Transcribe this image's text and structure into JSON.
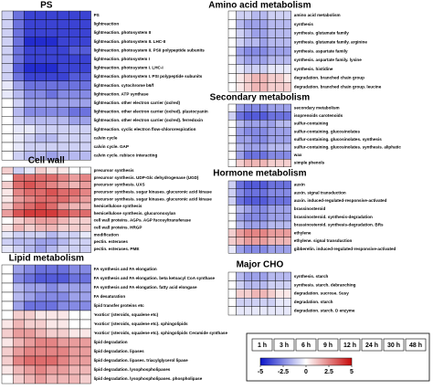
{
  "chart_data": [
    {
      "type": "heatmap",
      "title": "PS",
      "rows": [
        "PS",
        "lightreaction",
        "lightreaction. photosystem II",
        "lightreaction. photosystem II. LHC-II",
        "lightreaction. photosystem II. PSII polypeptide subunits",
        "lightreaction. photosystem I",
        "lightreaction. photosystem I. LHC-I",
        "lightreaction. photosystem I. PSI polypeptide subunits",
        "lightreaction. cytochrome b6/f",
        "lightreaction. ATP synthase",
        "lightreaction. other electron carrier (ox/red)",
        "lightreaction. other electron carrier (ox/red). plastocyanin",
        "lightreaction. other electron carrier (ox/red). ferredoxin",
        "lightreaction. cyclic electron flow-chlororespiration",
        "calvin cycle",
        "calvin cycle. GAP",
        "calvin cycle. rubisco interacting"
      ],
      "values": [
        [
          -1,
          -3,
          -4,
          -4,
          -4,
          -4,
          -4,
          -4
        ],
        [
          -1,
          -3,
          -4,
          -4,
          -4,
          -4,
          -4,
          -4
        ],
        [
          -1,
          -3,
          -4,
          -4,
          -4,
          -4,
          -4,
          -4
        ],
        [
          -1,
          -3,
          -4.5,
          -4.5,
          -4.5,
          -4,
          -4,
          -4
        ],
        [
          -1,
          -3,
          -4,
          -4,
          -4,
          -4,
          -3.5,
          -3.5
        ],
        [
          -1,
          -3,
          -4,
          -4,
          -4,
          -4,
          -4,
          -4
        ],
        [
          -1,
          -3.5,
          -4.5,
          -4.5,
          -4.5,
          -4,
          -4,
          -4
        ],
        [
          -1,
          -3,
          -4,
          -4,
          -4,
          -4,
          -3.5,
          -3.5
        ],
        [
          -0.5,
          -2,
          -3,
          -3,
          -3,
          -3,
          -3,
          -3
        ],
        [
          -0.5,
          -1.5,
          -2.5,
          -2.5,
          -3,
          -2.5,
          -2.5,
          -2.5
        ],
        [
          0,
          -1,
          -2,
          -2,
          -2,
          -2,
          -2,
          -2
        ],
        [
          0,
          -1.5,
          -2.5,
          -2.5,
          -2.5,
          -2.5,
          -3,
          -3
        ],
        [
          0,
          -1,
          -1.5,
          -1.5,
          -1.5,
          -1.5,
          -2,
          -2
        ],
        [
          0,
          -0.5,
          -0.5,
          -1,
          -1,
          -1,
          -1,
          -1
        ],
        [
          0,
          -0.5,
          -1,
          -1.5,
          -1.5,
          -1,
          -1,
          -1
        ],
        [
          0,
          -0.5,
          -1,
          -1,
          -1,
          -1,
          -1,
          -1
        ],
        [
          0,
          -1,
          -1.5,
          -1.5,
          -2,
          -1.5,
          -1.5,
          -1.5
        ]
      ]
    },
    {
      "type": "heatmap",
      "title": "Cell wall",
      "rows": [
        "precursor synthesis",
        "precursor synthesis. UDP-Glc dehydrogenase (UGD)",
        "precursor synthesis. UXS",
        "precursor synthesis. sugar kinases. glucuronic acid kinase",
        "precursor synthesis. sugar kinases. glucuronic acid kinase",
        "hemicellulose synthesis",
        "hemicellulose synthesis. glucuronoxylan",
        "cell wall proteins. AGPs. AGP fucosyltransferase",
        "cell wall proteins. HRGP",
        "modification",
        "pectin. esterases",
        "pectin. esterases. PME"
      ],
      "values": [
        [
          1,
          -1,
          -0.5,
          1,
          0.5,
          0.5,
          0,
          0
        ],
        [
          0,
          3,
          3,
          3,
          3,
          2.5,
          2,
          2.5
        ],
        [
          1,
          3,
          3.5,
          3,
          2.5,
          2,
          1.5,
          2
        ],
        [
          0.5,
          2.5,
          3,
          3,
          3.5,
          3,
          3,
          2.5
        ],
        [
          0.5,
          2,
          2.5,
          3,
          3,
          3,
          2.5,
          2
        ],
        [
          1,
          2.5,
          3,
          3.5,
          3,
          2,
          1.5,
          1.5
        ],
        [
          2,
          3.5,
          4,
          4,
          4,
          3.5,
          3,
          3
        ],
        [
          0,
          1,
          1.5,
          2,
          2,
          1.5,
          1,
          1
        ],
        [
          0.5,
          1.5,
          1,
          1.5,
          1.5,
          1,
          1,
          1
        ],
        [
          -0.5,
          -1,
          -1,
          -1,
          -1.5,
          -1,
          -1,
          -0.5
        ],
        [
          -1,
          -1.5,
          -1.5,
          -2,
          -2,
          -1.5,
          -1,
          -1
        ],
        [
          -0.5,
          -1,
          -1.5,
          -2,
          -1.5,
          -1,
          -1,
          -1
        ]
      ]
    },
    {
      "type": "heatmap",
      "title": "Lipid metabolism",
      "rows": [
        "FA synthesis and FA elongation",
        "FA synthesis and FA elongation. beta ketoacyl CoA synthase",
        "FA synthesis and FA elongation. fatty acid elongase",
        "FA desaturation",
        "lipid transfer proteins etc",
        "'exotics' (steroids, squalene etc)",
        "'exotics' (steroids, squalene etc). sphingolipids",
        "'exotics' (steroids, squalene etc). sphingolipids Ceramide synthase",
        "lipid degradation",
        "lipid degradation. lipases",
        "lipid degradation. lipases. triacylglycerol lipase",
        "lipid degradation. lysophospholipases",
        "lipid degradation. lysophospholipases. phospholipase"
      ],
      "values": [
        [
          0,
          -2,
          -2.5,
          -3,
          -3,
          -3,
          -2.5,
          -2.5
        ],
        [
          0,
          -2.5,
          -3,
          -3.5,
          -3.5,
          -3.5,
          -3,
          -3
        ],
        [
          0,
          -1.5,
          -2,
          -2,
          -2.5,
          -2,
          -2,
          -2
        ],
        [
          0,
          -1.5,
          -2,
          -2.5,
          -2.5,
          -2.5,
          -2,
          -2
        ],
        [
          0,
          -2,
          -3,
          -3,
          -3,
          -2.5,
          -2.5,
          -2.5
        ],
        [
          0,
          1,
          1,
          0.5,
          0.5,
          0.5,
          0,
          0
        ],
        [
          0.5,
          1.5,
          1,
          1,
          0.5,
          0.5,
          0,
          0
        ],
        [
          1,
          2,
          2,
          1.5,
          1,
          1,
          0.5,
          0.5
        ],
        [
          0.5,
          1.5,
          2,
          2.5,
          2.5,
          2,
          2,
          2
        ],
        [
          1,
          2,
          2.5,
          2.5,
          2.5,
          2.5,
          2,
          2
        ],
        [
          1,
          2.5,
          3,
          3,
          3,
          2.5,
          2,
          2
        ],
        [
          0.5,
          1.5,
          2,
          2.5,
          2,
          2,
          1.5,
          1.5
        ],
        [
          0,
          1,
          1.5,
          2,
          1.5,
          1.5,
          1.5,
          1
        ]
      ]
    },
    {
      "type": "heatmap",
      "title": "Amino acid metabolism",
      "rows": [
        "amino acid metabolism",
        "synthesis",
        "synthesis. glutamate family",
        "synthesis. glutamate family. arginine",
        "synthesis. aspartate family",
        "synthesis. aspartate family. lysine",
        "synthesis. histidine",
        "degradation. branched chain group",
        "degradation. branched chain group. leucine"
      ],
      "values": [
        [
          0,
          -1,
          -1,
          -1.5,
          -1.5,
          -1,
          -1,
          -1
        ],
        [
          0,
          -1.5,
          -2,
          -2,
          -2,
          -1.5,
          -1.5,
          -1.5
        ],
        [
          0,
          -1,
          -1.5,
          -2,
          -2,
          -1.5,
          -1.5,
          -1.5
        ],
        [
          0,
          -1,
          -1.5,
          -1.5,
          -2,
          -1.5,
          -1.5,
          -1.5
        ],
        [
          0,
          -2,
          -2.5,
          -2.5,
          -2.5,
          -2,
          -2,
          -2
        ],
        [
          0,
          -1.5,
          -2,
          -2,
          -2,
          -1.5,
          -1.5,
          -1.5
        ],
        [
          0,
          -0.5,
          -1,
          -1,
          -1,
          -0.5,
          -0.5,
          -0.5
        ],
        [
          0,
          0.5,
          1,
          1.5,
          1.5,
          1,
          1,
          0.5
        ],
        [
          0,
          0.5,
          1,
          1.5,
          1.5,
          1,
          1,
          1
        ]
      ]
    },
    {
      "type": "heatmap",
      "title": "Secondary metabolism",
      "rows": [
        "secondary metabolism",
        "isoprenoids carotenoids",
        "sulfur-containing",
        "sulfur-containing. glucosinolates",
        "sulfur-containing. glucosinolates. synthesis",
        "sulfur-containing. glucosinolates. synthesis. aliphatic",
        "wax",
        "simple phenols"
      ],
      "values": [
        [
          0,
          -2,
          -2.5,
          -2.5,
          -2.5,
          -2,
          -2,
          -2
        ],
        [
          -1,
          -3,
          -3.5,
          -3.5,
          -3.5,
          -3,
          -3,
          -3
        ],
        [
          0,
          -1.5,
          -2,
          -2,
          -2,
          -2,
          -1.5,
          -1.5
        ],
        [
          0,
          -2,
          -2.5,
          -2.5,
          -2.5,
          -2,
          -2,
          -2
        ],
        [
          0,
          -2,
          -2,
          -2.5,
          -2.5,
          -2,
          -2,
          -2
        ],
        [
          0,
          -1.5,
          -2,
          -2,
          -2,
          -1.5,
          -1.5,
          -1.5
        ],
        [
          0,
          -2,
          -3,
          -3,
          -3,
          -2.5,
          -2.5,
          -2.5
        ],
        [
          0,
          1,
          1.5,
          1.5,
          1.5,
          1,
          1,
          1
        ]
      ]
    },
    {
      "type": "heatmap",
      "title": "Hormone metabolism",
      "rows": [
        "auxin",
        "auxin. signal transduction",
        "auxin. induced-regulated-responsive-activated",
        "brassinosteroid",
        "brassinosteroid. synthesis-degradation",
        "brassinosteroid. synthesis-degradation. BRs",
        "ethylene",
        "ethylene. signal transduction",
        "gibberelin. induced-regulated-responsive-activated"
      ],
      "values": [
        [
          -1,
          -3,
          -3.5,
          -3.5,
          -3.5,
          -3,
          -3,
          -3
        ],
        [
          -1,
          -2.5,
          -3,
          -3,
          -3,
          -2.5,
          -2.5,
          -2.5
        ],
        [
          -1,
          -3,
          -3.5,
          -3.5,
          -3.5,
          -3,
          -3,
          -3
        ],
        [
          0,
          -1.5,
          -2,
          -2.5,
          -2.5,
          -2,
          -2,
          -2
        ],
        [
          0,
          -2,
          -2.5,
          -2.5,
          -2.5,
          -2,
          -2,
          -2
        ],
        [
          0,
          -1.5,
          -2,
          -2,
          -2,
          -1.5,
          -1.5,
          -1.5
        ],
        [
          1,
          2,
          2.5,
          2.5,
          2.5,
          2,
          2,
          2
        ],
        [
          1,
          1.5,
          2,
          2,
          2,
          1.5,
          1.5,
          1.5
        ],
        [
          -0.5,
          -2,
          -2.5,
          -2.5,
          -2.5,
          -2,
          -2,
          -2
        ]
      ]
    },
    {
      "type": "heatmap",
      "title": "Major CHO",
      "rows": [
        "synthesis. starch",
        "synthesis. starch. debranching",
        "degradation. sucrose. Susy",
        "degradation. starch",
        "degradation. starch. D enzyme"
      ],
      "values": [
        [
          0,
          -1.5,
          -2,
          -2,
          -2,
          -1.5,
          -1.5,
          -1.5
        ],
        [
          0,
          -1,
          -1.5,
          -1.5,
          -1.5,
          -1,
          -1,
          -1
        ],
        [
          0,
          1,
          1,
          1.5,
          1.5,
          1,
          0.5,
          0.5
        ],
        [
          0,
          -1,
          -1,
          -1,
          -1,
          -1,
          -0.5,
          -0.5
        ],
        [
          0,
          -0.5,
          -0.5,
          -0.5,
          -0.5,
          -0.5,
          -0.5,
          -0.5
        ]
      ]
    }
  ],
  "color_key": {
    "columns": [
      "1 h",
      "3 h",
      "6 h",
      "9 h",
      "12 h",
      "24 h",
      "30 h",
      "48 h"
    ],
    "lim": [
      -5,
      5
    ],
    "ticks": [
      -5,
      -2.5,
      0,
      2.5,
      5
    ],
    "colors": [
      "#0a14c8",
      "#ffffff",
      "#c80a0a"
    ]
  }
}
